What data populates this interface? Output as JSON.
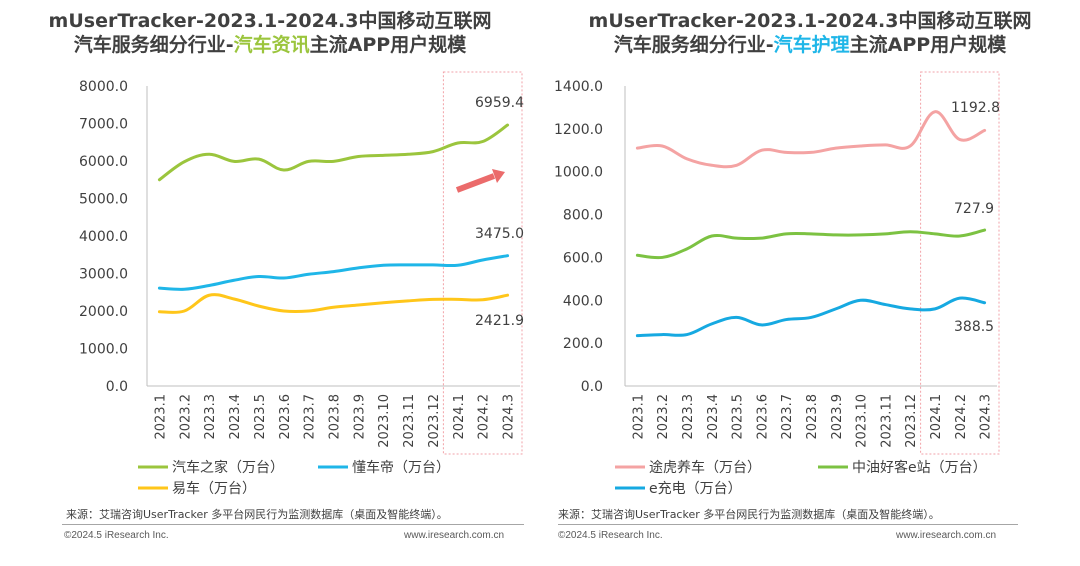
{
  "colors": {
    "green": "#9BC53D",
    "blue": "#1FB6E8",
    "yellow": "#FFC61A",
    "pink": "#F4A3A3",
    "green2": "#7CC242",
    "blue2": "#16A9E1",
    "arrow": "#EB6B6B",
    "highlight_box": "#F2A2A8",
    "axis": "#bfbfbf"
  },
  "footer": {
    "source": "来源：艾瑞咨询UserTracker 多平台网民行为监测数据库（桌面及智能终端）。",
    "copyright": "©2024.5 iResearch Inc.",
    "website": "www.iresearch.com.cn"
  },
  "panels": [
    {
      "title_line1": "mUserTracker-2023.1-2024.3中国移动互联网",
      "title_prefix": "汽车服务细分行业-",
      "title_highlight": "汽车资讯",
      "title_suffix": "主流APP用户规模",
      "title_highlight_color": "#9BC53D"
    },
    {
      "title_line1": "mUserTracker-2023.1-2024.3中国移动互联网",
      "title_prefix": "汽车服务细分行业-",
      "title_highlight": "汽车护理",
      "title_suffix": "主流APP用户规模",
      "title_highlight_color": "#1FB6E8"
    }
  ],
  "chart_data": [
    {
      "type": "line",
      "title": "mUserTracker-2023.1-2024.3中国移动互联网汽车服务细分行业-汽车资讯主流APP用户规模",
      "categories": [
        "2023.1",
        "2023.2",
        "2023.3",
        "2023.4",
        "2023.5",
        "2023.6",
        "2023.7",
        "2023.8",
        "2023.9",
        "2023.10",
        "2023.11",
        "2023.12",
        "2024.1",
        "2024.2",
        "2024.3"
      ],
      "ylim": [
        0,
        8000
      ],
      "yticks": [
        "0.0",
        "1000.0",
        "2000.0",
        "3000.0",
        "4000.0",
        "5000.0",
        "6000.0",
        "7000.0",
        "8000.0"
      ],
      "highlight_range": [
        "2024.1",
        "2024.3"
      ],
      "series": [
        {
          "name": "汽车之家（万台）",
          "color": "#9BC53D",
          "values": [
            5500,
            5980,
            6180,
            5990,
            6050,
            5760,
            5990,
            5990,
            6120,
            6150,
            6180,
            6250,
            6480,
            6520,
            6959.4
          ],
          "end_label": "6959.4"
        },
        {
          "name": "懂车帝（万台）",
          "color": "#1FB6E8",
          "values": [
            2610,
            2580,
            2680,
            2820,
            2920,
            2880,
            2980,
            3050,
            3150,
            3220,
            3230,
            3230,
            3220,
            3360,
            3475.0
          ],
          "end_label": "3475.0"
        },
        {
          "name": "易车（万台）",
          "color": "#FFC61A",
          "values": [
            1980,
            2000,
            2420,
            2320,
            2130,
            2000,
            2000,
            2100,
            2160,
            2220,
            2270,
            2310,
            2310,
            2300,
            2421.9
          ],
          "end_label": "2421.9"
        }
      ]
    },
    {
      "type": "line",
      "title": "mUserTracker-2023.1-2024.3中国移动互联网汽车服务细分行业-汽车护理主流APP用户规模",
      "categories": [
        "2023.1",
        "2023.2",
        "2023.3",
        "2023.4",
        "2023.5",
        "2023.6",
        "2023.7",
        "2023.8",
        "2023.9",
        "2023.10",
        "2023.11",
        "2023.12",
        "2024.1",
        "2024.2",
        "2024.3"
      ],
      "ylim": [
        0,
        1400
      ],
      "yticks": [
        "0.0",
        "200.0",
        "400.0",
        "600.0",
        "800.0",
        "1000.0",
        "1200.0",
        "1400.0"
      ],
      "highlight_range": [
        "2024.1",
        "2024.3"
      ],
      "series": [
        {
          "name": "途虎养车（万台）",
          "color": "#F4A3A3",
          "values": [
            1110,
            1120,
            1060,
            1030,
            1030,
            1100,
            1090,
            1090,
            1110,
            1120,
            1125,
            1120,
            1280,
            1150,
            1192.8
          ],
          "end_label": "1192.8"
        },
        {
          "name": "中油好客e站（万台）",
          "color": "#7CC242",
          "values": [
            610,
            600,
            640,
            700,
            690,
            690,
            710,
            710,
            705,
            705,
            710,
            720,
            710,
            700,
            727.9
          ],
          "end_label": "727.9"
        },
        {
          "name": "e充电（万台）",
          "color": "#16A9E1",
          "values": [
            235,
            240,
            240,
            290,
            320,
            285,
            310,
            320,
            360,
            400,
            380,
            360,
            360,
            410,
            388.5
          ],
          "end_label": "388.5"
        }
      ]
    }
  ]
}
